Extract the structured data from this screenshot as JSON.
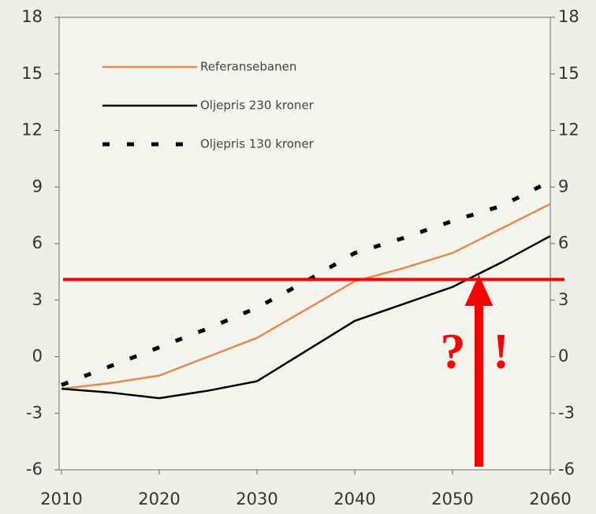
{
  "chart_data": {
    "type": "line",
    "x": [
      2010,
      2015,
      2020,
      2025,
      2030,
      2035,
      2040,
      2045,
      2050,
      2055,
      2060
    ],
    "xlim": [
      2010,
      2060
    ],
    "xticks": [
      2010,
      2020,
      2030,
      2040,
      2050,
      2060
    ],
    "ylim": [
      -6,
      18
    ],
    "yticks": [
      -6,
      -3,
      0,
      3,
      6,
      9,
      12,
      15,
      18
    ],
    "y2lim": [
      -6,
      18
    ],
    "y2ticks": [
      -6,
      -3,
      0,
      3,
      6,
      9,
      12,
      15,
      18
    ],
    "series": [
      {
        "name": "Referansebanen",
        "color": "#e8894a",
        "values": [
          -1.7,
          -1.4,
          -1.0,
          0,
          1.0,
          2.5,
          4.0,
          4.7,
          5.5,
          6.8,
          8.1
        ]
      },
      {
        "name": "Oljepris 230 kroner",
        "color": "#000000",
        "values": [
          -1.7,
          -1.9,
          -2.2,
          -1.8,
          -1.3,
          0.3,
          1.9,
          2.8,
          3.7,
          5.0,
          6.4
        ]
      },
      {
        "name": "Oljepris 130 kroner",
        "color": "#000000",
        "dashed": true,
        "values": [
          -1.5,
          -0.5,
          0.5,
          1.5,
          2.6,
          4.0,
          5.5,
          6.3,
          7.2,
          8.0,
          9.3
        ]
      }
    ],
    "reference_line": {
      "value": 4.1,
      "color": "#ff0000"
    },
    "arrow": {
      "x": 2052.7,
      "color": "#ff0000"
    },
    "annotations": [
      "?",
      "!"
    ]
  }
}
